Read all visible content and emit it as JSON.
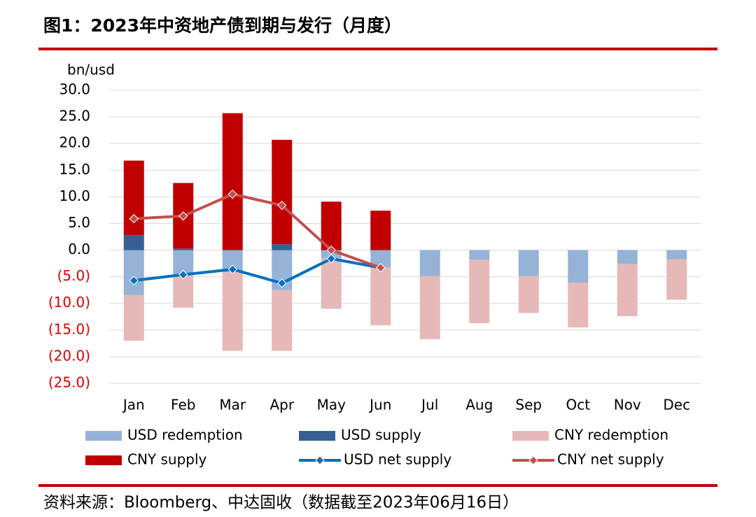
{
  "chart_data": {
    "type": "bar",
    "title": "图1：2023年中资地产债到期与发行（月度）",
    "y_label": "bn/usd",
    "source": "资料来源：Bloomberg、中达固收（数据截至2023年06月16日）",
    "categories": [
      "Jan",
      "Feb",
      "Mar",
      "Apr",
      "May",
      "Jun",
      "Jul",
      "Aug",
      "Sep",
      "Oct",
      "Nov",
      "Dec"
    ],
    "series": [
      {
        "name": "USD redemption",
        "type": "bar",
        "color": "#95b3d7",
        "values": [
          -8.4,
          -4.6,
          -4.1,
          -7.5,
          -1.5,
          -3.2,
          -4.9,
          -1.8,
          -4.9,
          -6.1,
          -2.6,
          -1.7
        ]
      },
      {
        "name": "USD supply",
        "type": "bar",
        "color": "#366092",
        "values": [
          2.8,
          0.3,
          0,
          1.1,
          0,
          0,
          0,
          0,
          0,
          0,
          0,
          0
        ]
      },
      {
        "name": "CNY redemption",
        "type": "bar",
        "color": "#e6b9b8",
        "values": [
          -8.6,
          -6.2,
          -14.8,
          -11.4,
          -9.5,
          -10.9,
          -11.8,
          -11.9,
          -6.9,
          -8.4,
          -9.8,
          -7.6
        ]
      },
      {
        "name": "CNY supply",
        "type": "bar",
        "color": "#c00000",
        "values": [
          14.0,
          12.3,
          25.7,
          19.6,
          9.1,
          7.4,
          0,
          0,
          0,
          0,
          0,
          0
        ]
      },
      {
        "name": "USD net supply",
        "type": "line",
        "color": "#0070c0",
        "values": [
          -5.7,
          -4.6,
          -3.6,
          -6.2,
          -1.6,
          -3.3,
          null,
          null,
          null,
          null,
          null,
          null
        ]
      },
      {
        "name": "CNY net supply",
        "type": "line",
        "color": "#c0504d",
        "values": [
          5.9,
          6.4,
          10.5,
          8.4,
          0.0,
          -3.3,
          null,
          null,
          null,
          null,
          null,
          null
        ]
      }
    ],
    "ylim": [
      -25,
      30
    ],
    "yticks": [
      {
        "value": 30,
        "label": "30.0"
      },
      {
        "value": 25,
        "label": "25.0"
      },
      {
        "value": 20,
        "label": "20.0"
      },
      {
        "value": 15,
        "label": "15.0"
      },
      {
        "value": 10,
        "label": "10.0"
      },
      {
        "value": 5,
        "label": "5.0"
      },
      {
        "value": 0,
        "label": "0.0"
      },
      {
        "value": -5,
        "label": "(5.0)"
      },
      {
        "value": -10,
        "label": "(10.0)"
      },
      {
        "value": -15,
        "label": "(15.0)"
      },
      {
        "value": -20,
        "label": "(20.0)"
      },
      {
        "value": -25,
        "label": "(25.0)"
      }
    ],
    "negative_tick_color": "#e00000",
    "grid": true
  }
}
